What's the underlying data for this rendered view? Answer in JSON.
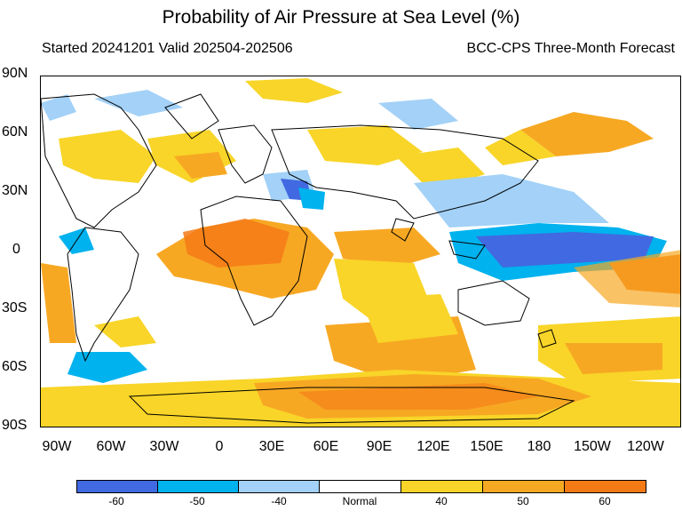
{
  "title": "Probability of Air Pressure at Sea Level (%)",
  "subtitle_left": "Started 20241201  Valid 202504-202506",
  "subtitle_right": "BCC-CPS Three-Month Forecast",
  "lat_labels": [
    "90N",
    "60N",
    "30N",
    "0",
    "30S",
    "60S",
    "90S"
  ],
  "lon_labels": [
    "90W",
    "60W",
    "30W",
    "0",
    "30E",
    "60E",
    "90E",
    "120E",
    "150E",
    "180",
    "150W",
    "120W"
  ],
  "colorbar": [
    {
      "label": "-60",
      "color": "#4169e1"
    },
    {
      "label": "-50",
      "color": "#00b2ee"
    },
    {
      "label": "-40",
      "color": "#a3d1f7"
    },
    {
      "label": "Normal",
      "color": "#ffffff"
    },
    {
      "label": "40",
      "color": "#f8d528"
    },
    {
      "label": "50",
      "color": "#f7a823"
    },
    {
      "label": "60",
      "color": "#f47a16"
    }
  ]
}
